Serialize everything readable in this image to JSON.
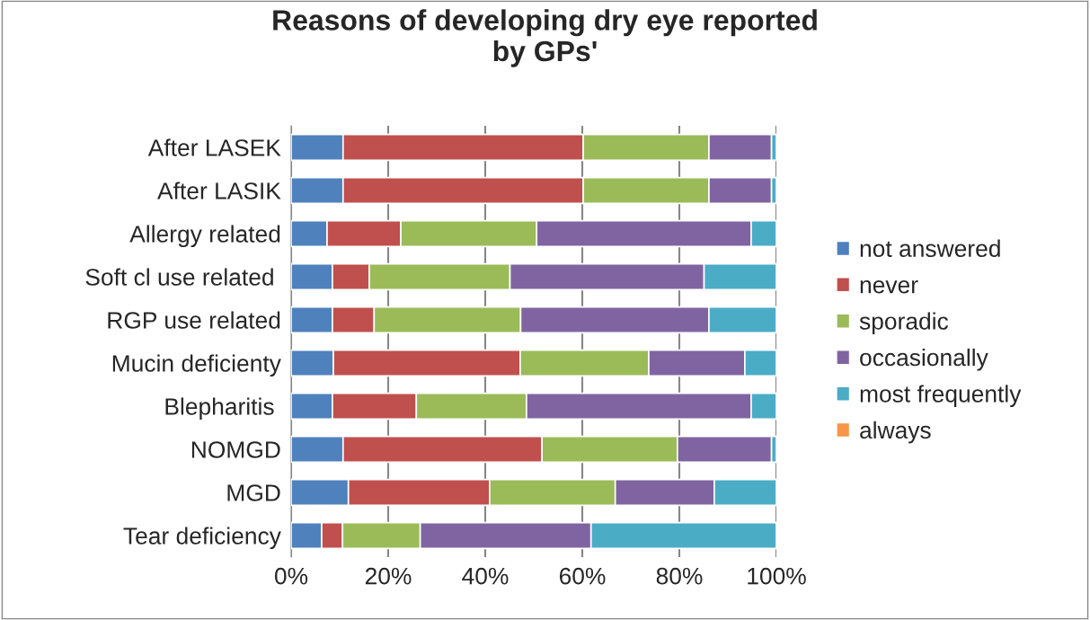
{
  "chart_data": {
    "type": "bar",
    "orientation": "horizontal",
    "stacked": true,
    "title": "Reasons of developing dry eye reported\nby GPs'",
    "categories": [
      "After LASEK",
      "After LASIK",
      "Allergy related",
      "Soft cl use related ",
      "RGP use related",
      "Mucin deficienty",
      "Blepharitis ",
      "NOMGD",
      "MGD",
      "Tear deficiency"
    ],
    "series": [
      {
        "name": "not answered",
        "color": "#4f81bd",
        "values": [
          10.7,
          10.7,
          7.4,
          8.5,
          8.5,
          8.7,
          8.5,
          10.7,
          11.8,
          6.3
        ]
      },
      {
        "name": "never",
        "color": "#c0504d",
        "values": [
          49.5,
          49.5,
          15.2,
          7.6,
          8.6,
          38.5,
          17.3,
          41.0,
          29.1,
          4.3
        ]
      },
      {
        "name": "sporadic",
        "color": "#9bbb59",
        "values": [
          25.9,
          25.9,
          28.0,
          29.0,
          30.2,
          26.5,
          22.7,
          27.9,
          25.9,
          16.0
        ]
      },
      {
        "name": "occasionally",
        "color": "#8064a2",
        "values": [
          12.9,
          12.9,
          44.2,
          40.0,
          38.8,
          19.8,
          46.3,
          19.4,
          20.4,
          35.2
        ]
      },
      {
        "name": "most frequently",
        "color": "#4bacc6",
        "values": [
          1.0,
          1.0,
          5.2,
          14.9,
          13.9,
          6.5,
          5.2,
          1.0,
          12.8,
          38.2
        ]
      },
      {
        "name": "always",
        "color": "#f79646",
        "values": [
          0,
          0,
          0,
          0,
          0,
          0,
          0,
          0,
          0,
          0
        ]
      }
    ],
    "xlim": [
      0,
      100
    ],
    "xticks": [
      {
        "value": 0,
        "label": "0%"
      },
      {
        "value": 20,
        "label": "20%"
      },
      {
        "value": 40,
        "label": "40%"
      },
      {
        "value": 60,
        "label": "60%"
      },
      {
        "value": 80,
        "label": "80%"
      },
      {
        "value": 100,
        "label": "100%"
      }
    ],
    "grid": "x",
    "legend": "right"
  }
}
